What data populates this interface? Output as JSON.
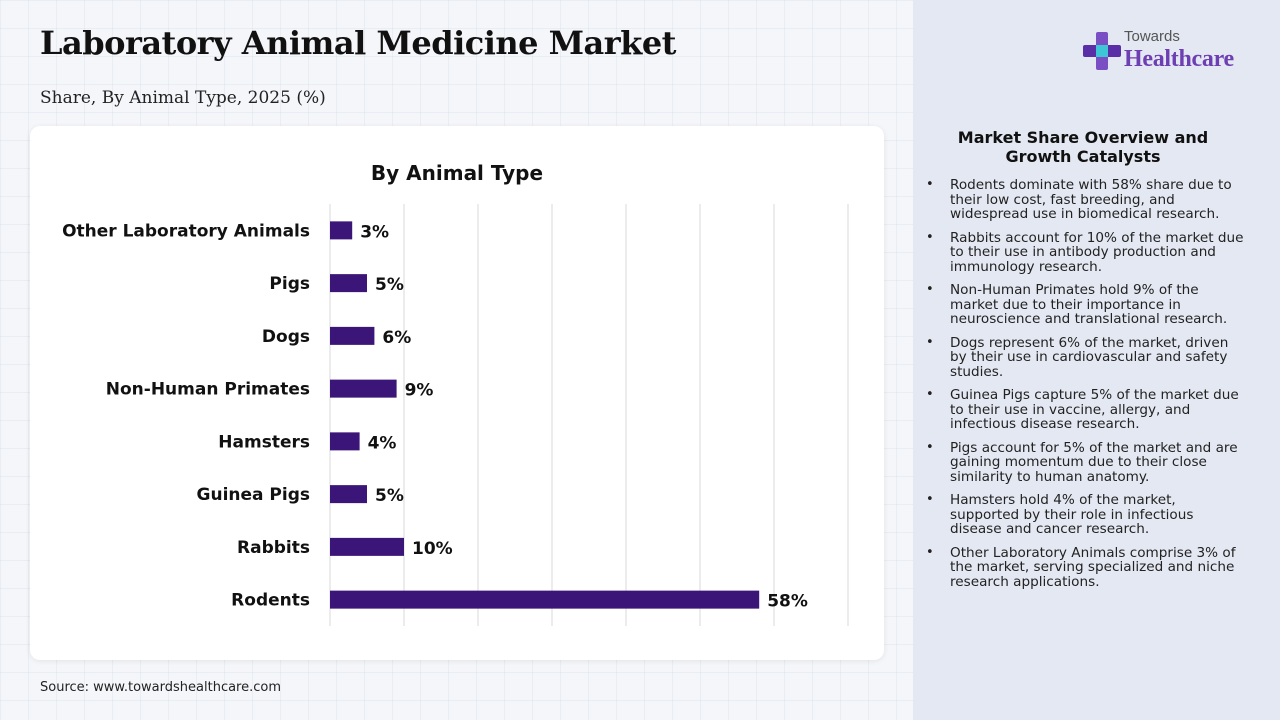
{
  "header": {
    "title": "Laboratory Animal Medicine Market",
    "subtitle": "Share, By Animal Type, 2025 (%)"
  },
  "source": "Source: www.towardshealthcare.com",
  "logo": {
    "top_text": "Towards",
    "bottom_text": "Healthcare",
    "icon": "medical-cross-icon"
  },
  "sidebar": {
    "heading": "Market Share Overview and Growth Catalysts",
    "items": [
      "Rodents dominate with 58% share due to their low cost, fast breeding, and widespread use in biomedical research.",
      "Rabbits account for 10% of the market due to their use in antibody production and immunology research.",
      "Non-Human Primates hold 9% of the market due to their importance in neuroscience and translational research.",
      "Dogs represent 6% of the market, driven by their use in cardiovascular and safety studies.",
      "Guinea Pigs capture 5% of the market due to their use in vaccine, allergy, and infectious disease research.",
      "Pigs account for 5% of the market and are gaining momentum due to their close similarity to human anatomy.",
      "Hamsters hold 4% of the market, supported by their role in infectious disease and cancer research.",
      "Other Laboratory Animals comprise 3% of the market, serving specialized and niche research applications."
    ]
  },
  "colors": {
    "bar": "#3b1578",
    "logo_accent": "#6d3fb3"
  },
  "chart_data": {
    "type": "bar",
    "orientation": "horizontal",
    "title": "By Animal Type",
    "categories": [
      "Other Laboratory Animals",
      "Pigs",
      "Dogs",
      "Non-Human Primates",
      "Hamsters",
      "Guinea Pigs",
      "Rabbits",
      "Rodents"
    ],
    "values": [
      3,
      5,
      6,
      9,
      4,
      5,
      10,
      58
    ],
    "value_suffix": "%",
    "xlim": [
      0,
      70
    ],
    "grid": true,
    "legend": "none"
  }
}
